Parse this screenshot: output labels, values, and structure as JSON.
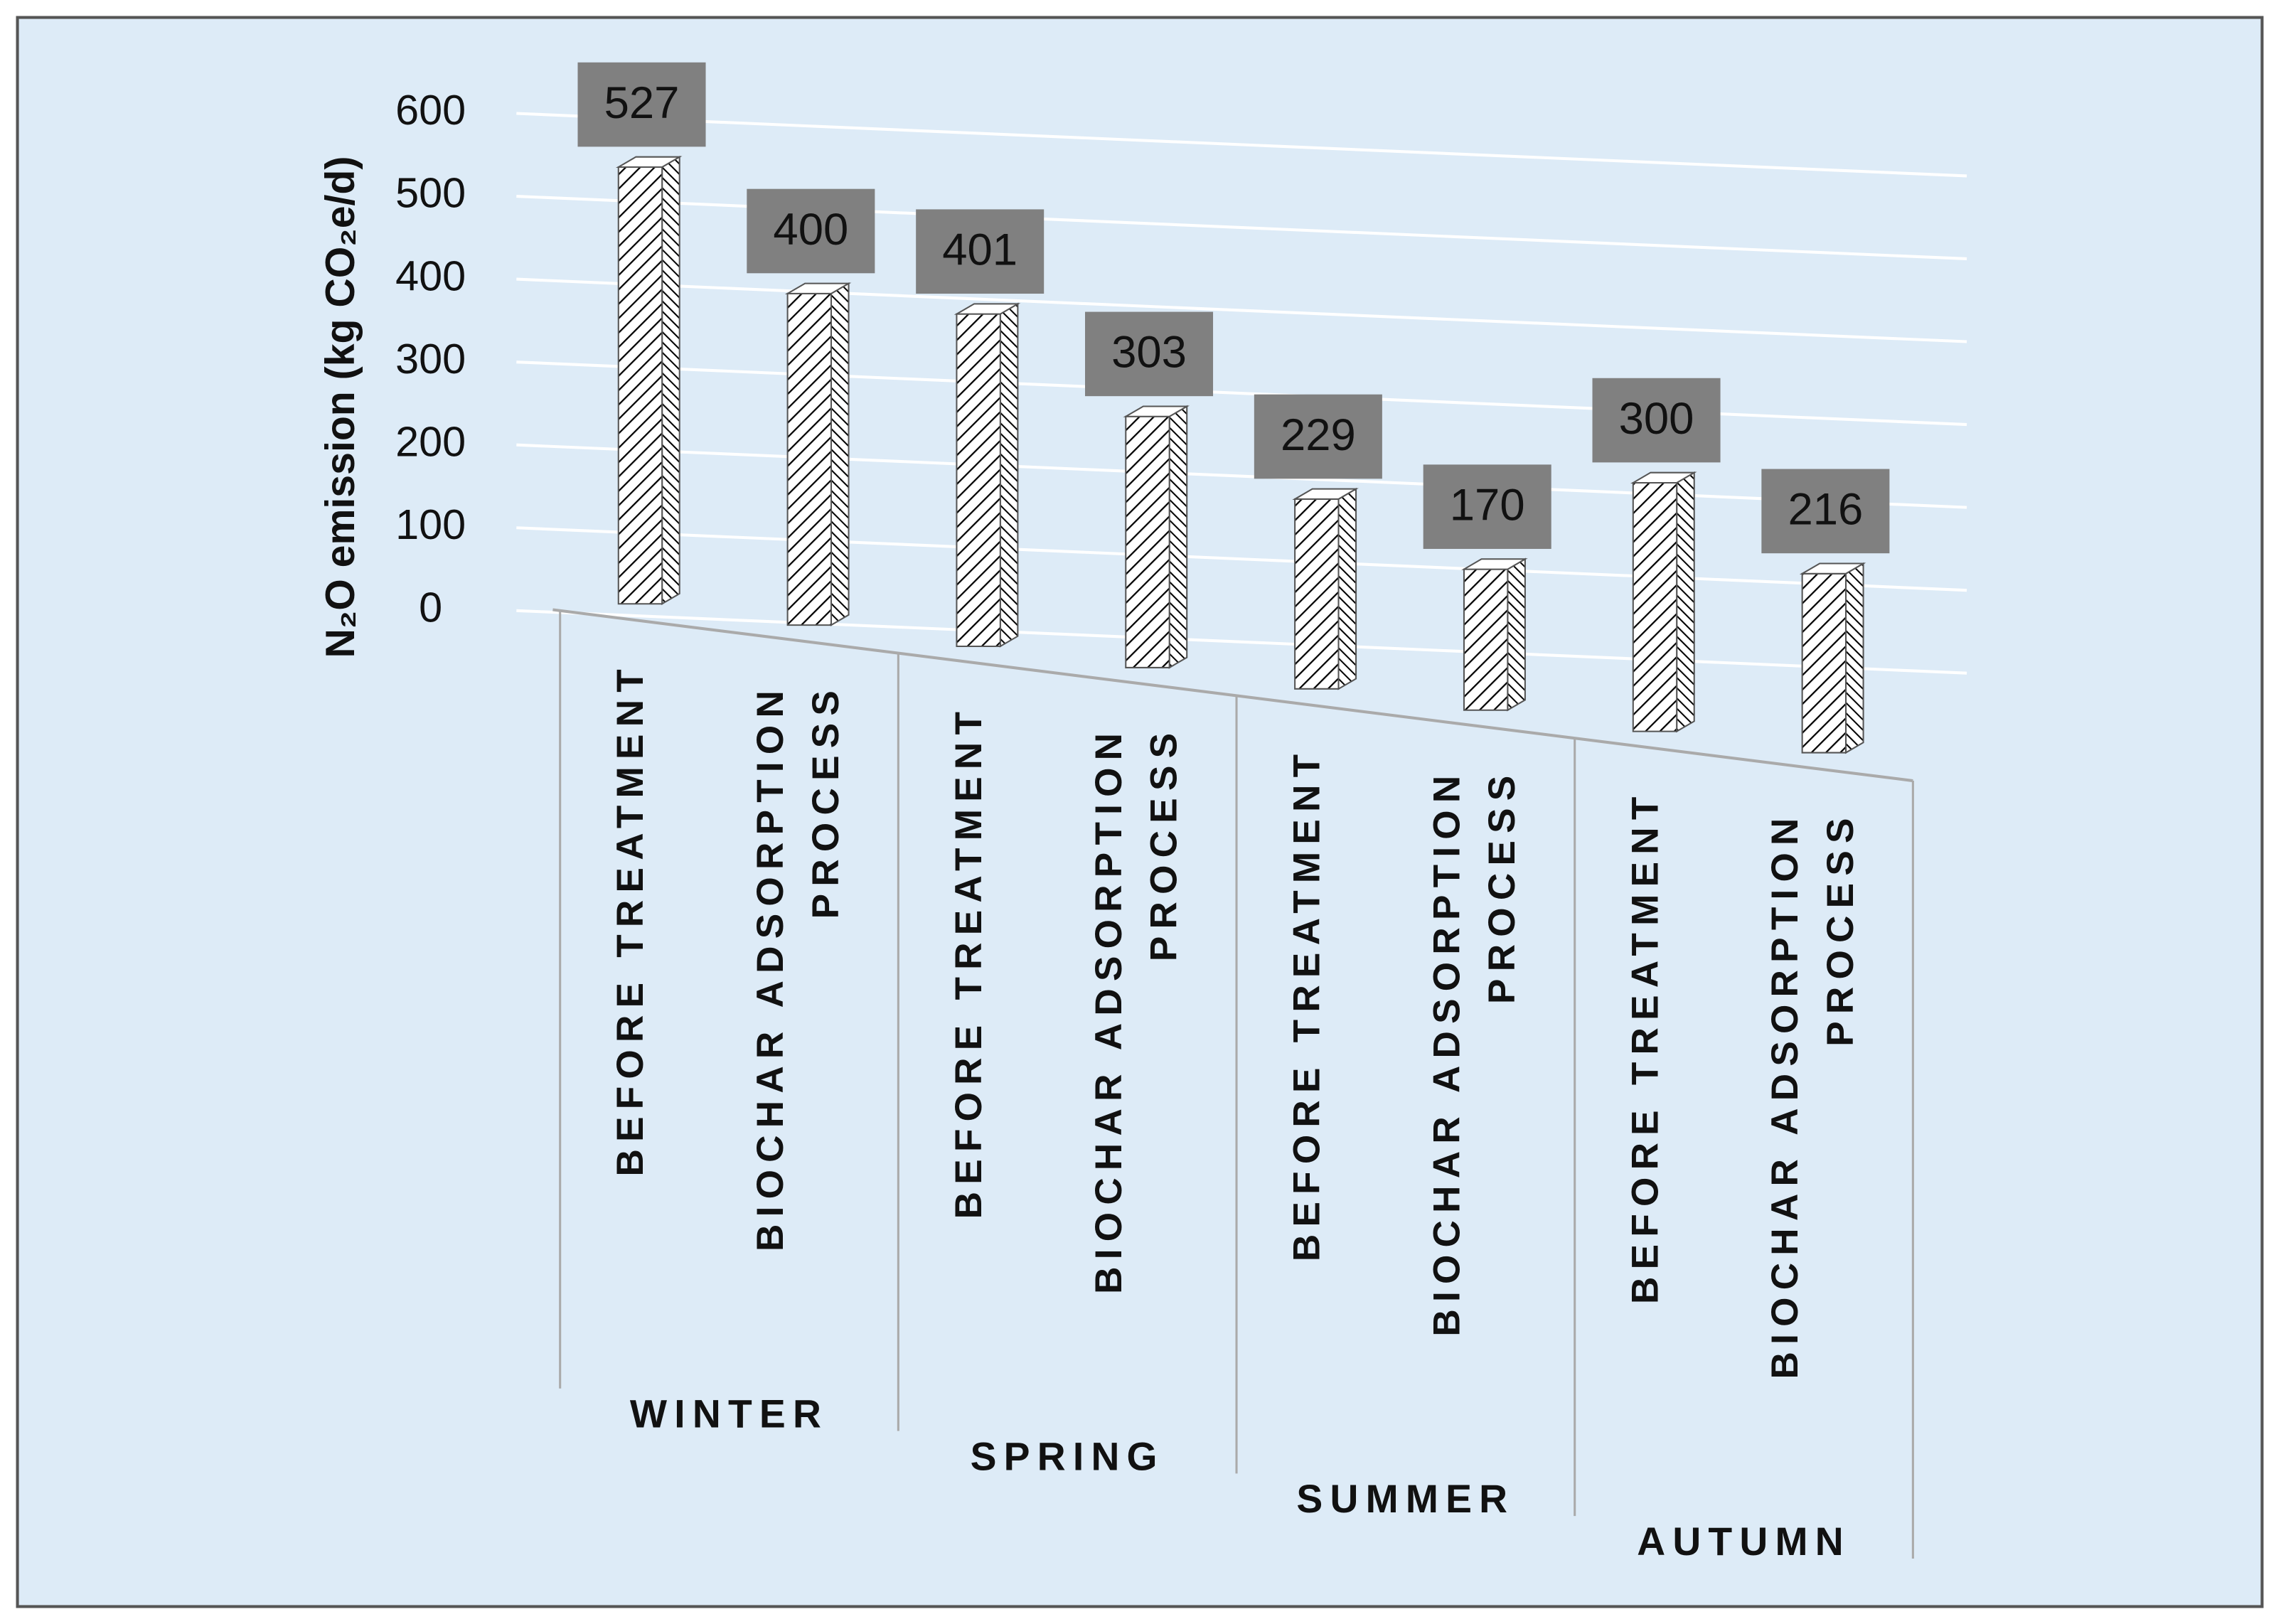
{
  "chart_data": {
    "type": "bar3d",
    "y_label": "N₂O emission (kg CO₂e/d)",
    "groups": [
      "WINTER",
      "SPRING",
      "SUMMER",
      "AUTUMN"
    ],
    "categories": [
      "BEFORE TREATMENT",
      "BIOCHAR ADSORPTION PROCESS",
      "BEFORE TREATMENT",
      "BIOCHAR ADSORPTION PROCESS",
      "BEFORE TREATMENT",
      "BIOCHAR ADSORPTION PROCESS",
      "BEFORE TREATMENT",
      "BIOCHAR ADSORPTION PROCESS"
    ],
    "values": [
      527,
      400,
      401,
      303,
      229,
      170,
      300,
      216
    ],
    "color": "#000000",
    "ylim": [
      0,
      600
    ],
    "yticks": [
      0,
      100,
      200,
      300,
      400,
      500,
      600
    ],
    "grid": true
  }
}
